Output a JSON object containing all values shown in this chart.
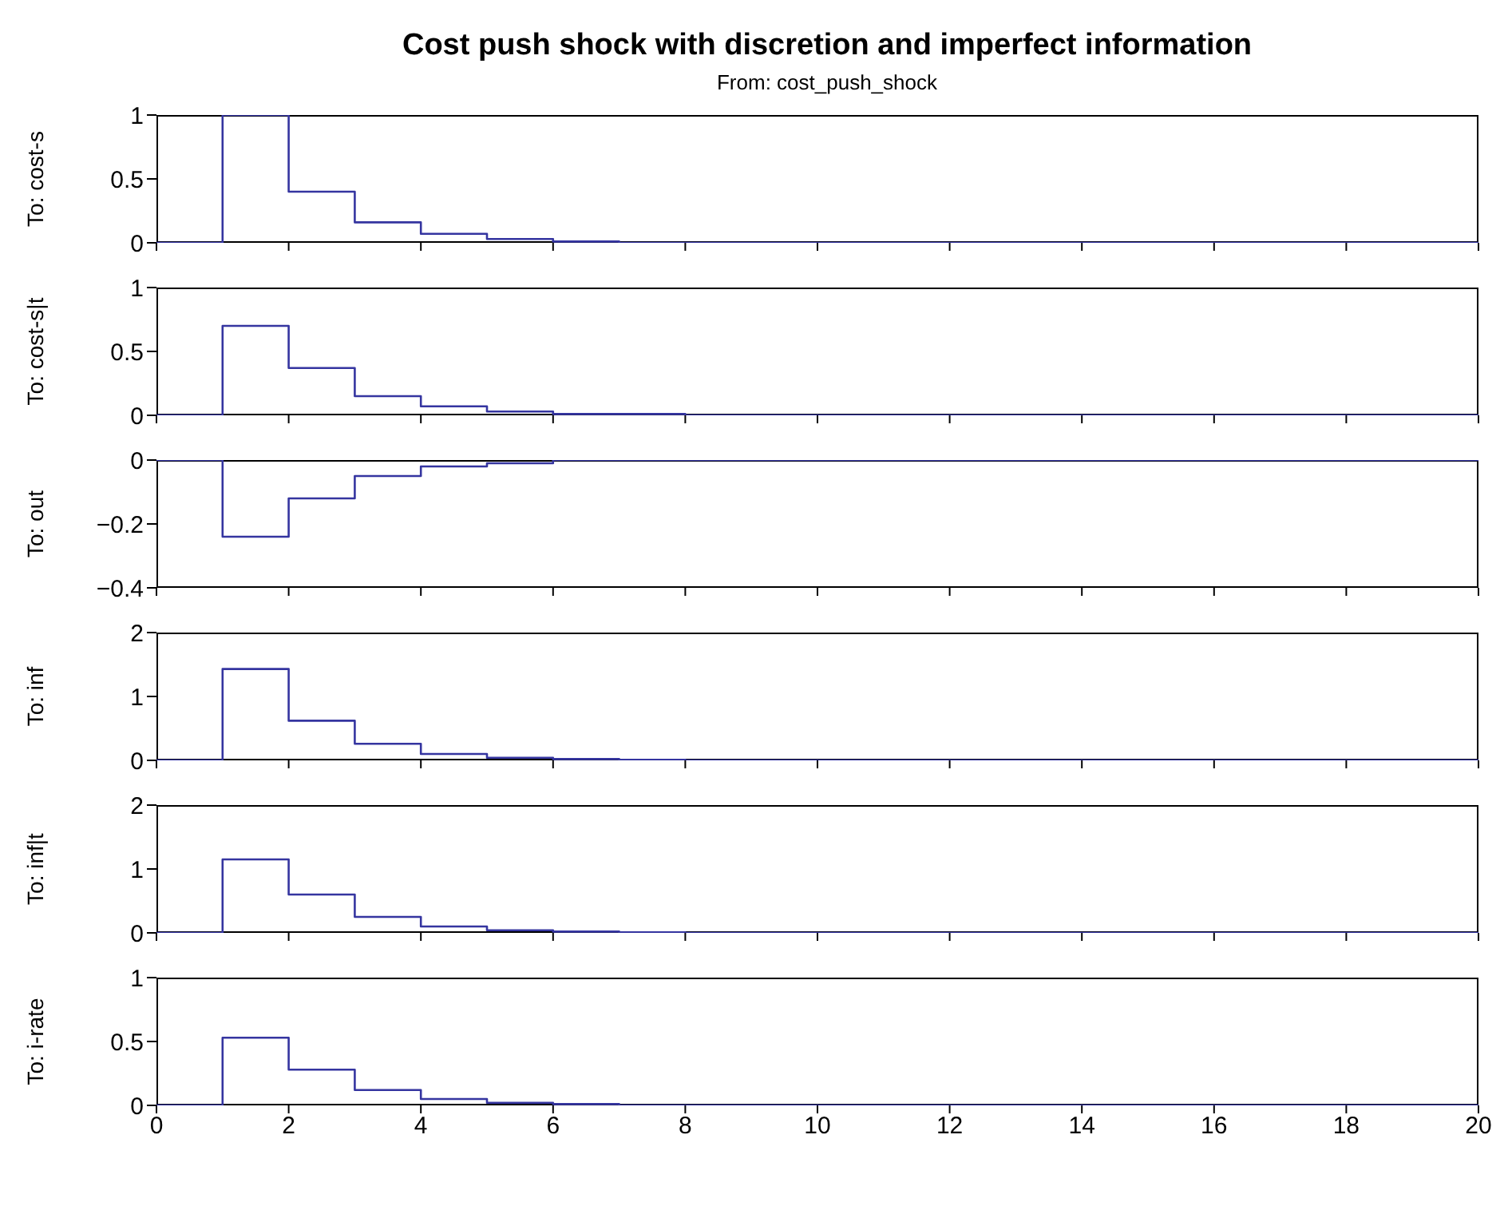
{
  "chart_data": [
    {
      "type": "step",
      "title": "Cost push shock with discretion and imperfect information",
      "subtitle": "From: cost_push_shock",
      "ylabel": "To: cost-s",
      "x": [
        0,
        1,
        2,
        3,
        4,
        5,
        6,
        7,
        8,
        9,
        10,
        11,
        12,
        13,
        14,
        15,
        16,
        17,
        18,
        19,
        20
      ],
      "xlim": [
        0,
        20
      ],
      "xticks": [
        0,
        2,
        4,
        6,
        8,
        10,
        12,
        14,
        16,
        18,
        20
      ],
      "ylim": [
        0,
        1
      ],
      "yticks": [
        0,
        0.5,
        1
      ],
      "tick_labels": "y",
      "series": [
        {
          "color": "#3535a0",
          "values": [
            0,
            1,
            0.4,
            0.16,
            0.07,
            0.03,
            0.01,
            0,
            0,
            0,
            0,
            0,
            0,
            0,
            0,
            0,
            0,
            0,
            0,
            0,
            0
          ]
        }
      ]
    },
    {
      "type": "step",
      "ylabel": "To: cost-s|t",
      "x": [
        0,
        1,
        2,
        3,
        4,
        5,
        6,
        7,
        8,
        9,
        10,
        11,
        12,
        13,
        14,
        15,
        16,
        17,
        18,
        19,
        20
      ],
      "xlim": [
        0,
        20
      ],
      "xticks": [
        0,
        2,
        4,
        6,
        8,
        10,
        12,
        14,
        16,
        18,
        20
      ],
      "ylim": [
        0,
        1
      ],
      "yticks": [
        0,
        0.5,
        1
      ],
      "tick_labels": "y",
      "series": [
        {
          "color": "#3535a0",
          "values": [
            0,
            0.7,
            0.37,
            0.15,
            0.07,
            0.03,
            0.01,
            0.01,
            0,
            0,
            0,
            0,
            0,
            0,
            0,
            0,
            0,
            0,
            0,
            0,
            0
          ]
        }
      ]
    },
    {
      "type": "step",
      "ylabel": "To: out",
      "x": [
        0,
        1,
        2,
        3,
        4,
        5,
        6,
        7,
        8,
        9,
        10,
        11,
        12,
        13,
        14,
        15,
        16,
        17,
        18,
        19,
        20
      ],
      "xlim": [
        0,
        20
      ],
      "xticks": [
        0,
        2,
        4,
        6,
        8,
        10,
        12,
        14,
        16,
        18,
        20
      ],
      "ylim": [
        -0.4,
        0
      ],
      "yticks": [
        {
          "value": -0.4,
          "label": "−0.4"
        },
        {
          "value": -0.2,
          "label": "−0.2"
        },
        0
      ],
      "tick_labels": "y",
      "series": [
        {
          "color": "#3535a0",
          "values": [
            0,
            -0.24,
            -0.12,
            -0.05,
            -0.02,
            -0.01,
            0,
            0,
            0,
            0,
            0,
            0,
            0,
            0,
            0,
            0,
            0,
            0,
            0,
            0,
            0
          ]
        }
      ]
    },
    {
      "type": "step",
      "ylabel": "To: inf",
      "x": [
        0,
        1,
        2,
        3,
        4,
        5,
        6,
        7,
        8,
        9,
        10,
        11,
        12,
        13,
        14,
        15,
        16,
        17,
        18,
        19,
        20
      ],
      "xlim": [
        0,
        20
      ],
      "xticks": [
        0,
        2,
        4,
        6,
        8,
        10,
        12,
        14,
        16,
        18,
        20
      ],
      "ylim": [
        0,
        2
      ],
      "yticks": [
        0,
        1,
        2
      ],
      "tick_labels": "y",
      "series": [
        {
          "color": "#3535a0",
          "values": [
            0,
            1.43,
            0.62,
            0.26,
            0.1,
            0.04,
            0.02,
            0.01,
            0,
            0,
            0,
            0,
            0,
            0,
            0,
            0,
            0,
            0,
            0,
            0,
            0
          ]
        }
      ]
    },
    {
      "type": "step",
      "ylabel": "To: inf|t",
      "x": [
        0,
        1,
        2,
        3,
        4,
        5,
        6,
        7,
        8,
        9,
        10,
        11,
        12,
        13,
        14,
        15,
        16,
        17,
        18,
        19,
        20
      ],
      "xlim": [
        0,
        20
      ],
      "xticks": [
        0,
        2,
        4,
        6,
        8,
        10,
        12,
        14,
        16,
        18,
        20
      ],
      "ylim": [
        0,
        2
      ],
      "yticks": [
        0,
        1,
        2
      ],
      "tick_labels": "y",
      "series": [
        {
          "color": "#3535a0",
          "values": [
            0,
            1.15,
            0.6,
            0.25,
            0.1,
            0.04,
            0.02,
            0.01,
            0,
            0,
            0,
            0,
            0,
            0,
            0,
            0,
            0,
            0,
            0,
            0,
            0
          ]
        }
      ]
    },
    {
      "type": "step",
      "ylabel": "To: i-rate",
      "x": [
        0,
        1,
        2,
        3,
        4,
        5,
        6,
        7,
        8,
        9,
        10,
        11,
        12,
        13,
        14,
        15,
        16,
        17,
        18,
        19,
        20
      ],
      "xlim": [
        0,
        20
      ],
      "xticks": [
        0,
        2,
        4,
        6,
        8,
        10,
        12,
        14,
        16,
        18,
        20
      ],
      "ylim": [
        0,
        1
      ],
      "yticks": [
        0,
        0.5,
        1
      ],
      "series": [
        {
          "color": "#3535a0",
          "values": [
            0,
            0.53,
            0.28,
            0.12,
            0.05,
            0.02,
            0.01,
            0,
            0,
            0,
            0,
            0,
            0,
            0,
            0,
            0,
            0,
            0,
            0,
            0,
            0
          ]
        }
      ]
    }
  ]
}
